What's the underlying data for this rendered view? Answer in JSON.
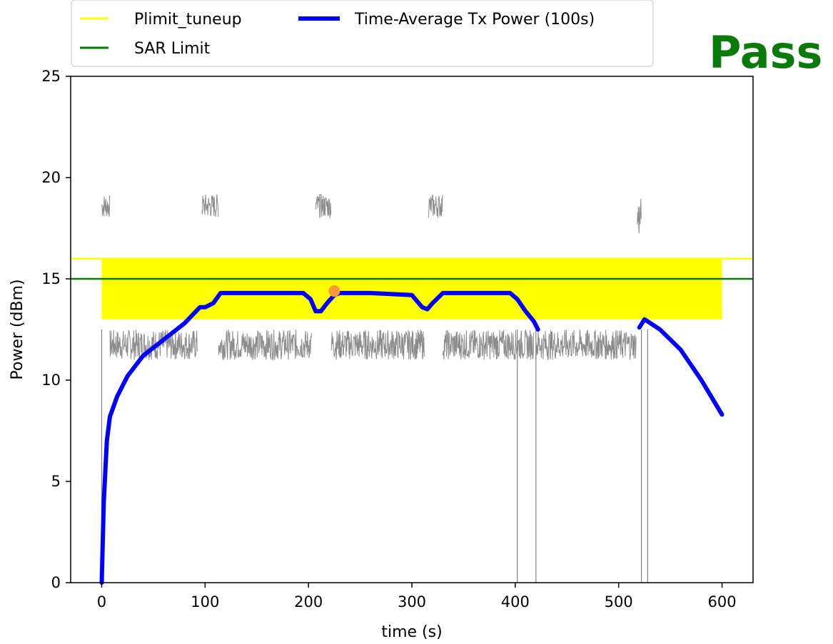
{
  "verdict": "Pass",
  "colors": {
    "tuneup": "#ffff00",
    "sar": "#007d00",
    "avg": "#0000ff",
    "inst": "#7f7f7f",
    "peak": "#ff9933",
    "verdict": "#0a7a0a"
  },
  "chart_data": {
    "type": "line",
    "xlabel": "time (s)",
    "ylabel": "Power (dBm)",
    "xlim": [
      -30,
      630
    ],
    "ylim": [
      0,
      25
    ],
    "xticks": [
      0,
      100,
      200,
      300,
      400,
      500,
      600
    ],
    "yticks": [
      0,
      5,
      10,
      15,
      20,
      25
    ],
    "grid": false,
    "legend": {
      "placement": "top-left (outside above axes)",
      "entries": [
        {
          "label": "Plimit_tuneup",
          "color": "#ffff00"
        },
        {
          "label": "SAR Limit",
          "color": "#007d00"
        },
        {
          "label": "Time-Average Tx Power (100s)",
          "color": "#0000ff"
        }
      ]
    },
    "series": [
      {
        "name": "Plimit_tuneup",
        "constant": 16,
        "x_range": [
          -30,
          630
        ]
      },
      {
        "name": "SAR Limit",
        "constant": 15,
        "x_range": [
          -30,
          630
        ]
      },
      {
        "name": "Time-Average Tx Power (100s)",
        "x": [
          0,
          2,
          5,
          8,
          15,
          25,
          40,
          60,
          80,
          95,
          100,
          108,
          115,
          150,
          195,
          202,
          207,
          212,
          218,
          225,
          230,
          260,
          300,
          310,
          315,
          320,
          330,
          350,
          395,
          402,
          410,
          418,
          422
        ],
        "y": [
          0,
          4,
          7,
          8.2,
          9.2,
          10.2,
          11.2,
          12.0,
          12.8,
          13.6,
          13.6,
          13.8,
          14.3,
          14.3,
          14.3,
          14.0,
          13.4,
          13.4,
          13.8,
          14.2,
          14.3,
          14.3,
          14.2,
          13.6,
          13.5,
          13.8,
          14.3,
          14.3,
          14.3,
          14.0,
          13.4,
          12.9,
          12.5
        ]
      },
      {
        "name": "Time-Average Tx Power (100s) tail",
        "x": [
          520,
          525,
          540,
          560,
          580,
          600
        ],
        "y": [
          12.6,
          13.0,
          12.5,
          11.5,
          10.0,
          8.3
        ]
      }
    ],
    "tuneup_band": {
      "x": [
        0,
        600
      ],
      "y": [
        13,
        16
      ]
    },
    "instantaneous_power": {
      "segments": [
        {
          "x": [
            0,
            8
          ],
          "level": "high",
          "range": [
            18,
            19.2
          ]
        },
        {
          "x": [
            8,
            93
          ],
          "level": "low",
          "range": [
            11,
            12.5
          ]
        },
        {
          "x": [
            97,
            113
          ],
          "level": "high",
          "range": [
            18,
            19.2
          ]
        },
        {
          "x": [
            113,
            203
          ],
          "level": "low",
          "range": [
            11,
            12.5
          ]
        },
        {
          "x": [
            207,
            222
          ],
          "level": "high",
          "range": [
            18,
            19.2
          ]
        },
        {
          "x": [
            222,
            312
          ],
          "level": "low",
          "range": [
            11,
            12.5
          ]
        },
        {
          "x": [
            316,
            330
          ],
          "level": "high",
          "range": [
            18,
            19.2
          ]
        },
        {
          "x": [
            330,
            418
          ],
          "level": "low",
          "range": [
            11,
            12.5
          ]
        },
        {
          "x": [
            420,
            517
          ],
          "level": "low",
          "range": [
            11,
            12.5
          ]
        },
        {
          "x": [
            518,
            522
          ],
          "level": "high",
          "range": [
            17,
            19
          ]
        }
      ],
      "drops_to_zero_at": [
        0,
        402,
        420,
        522,
        528
      ]
    },
    "peak_marker": {
      "x": 225,
      "y": 14.4
    }
  }
}
